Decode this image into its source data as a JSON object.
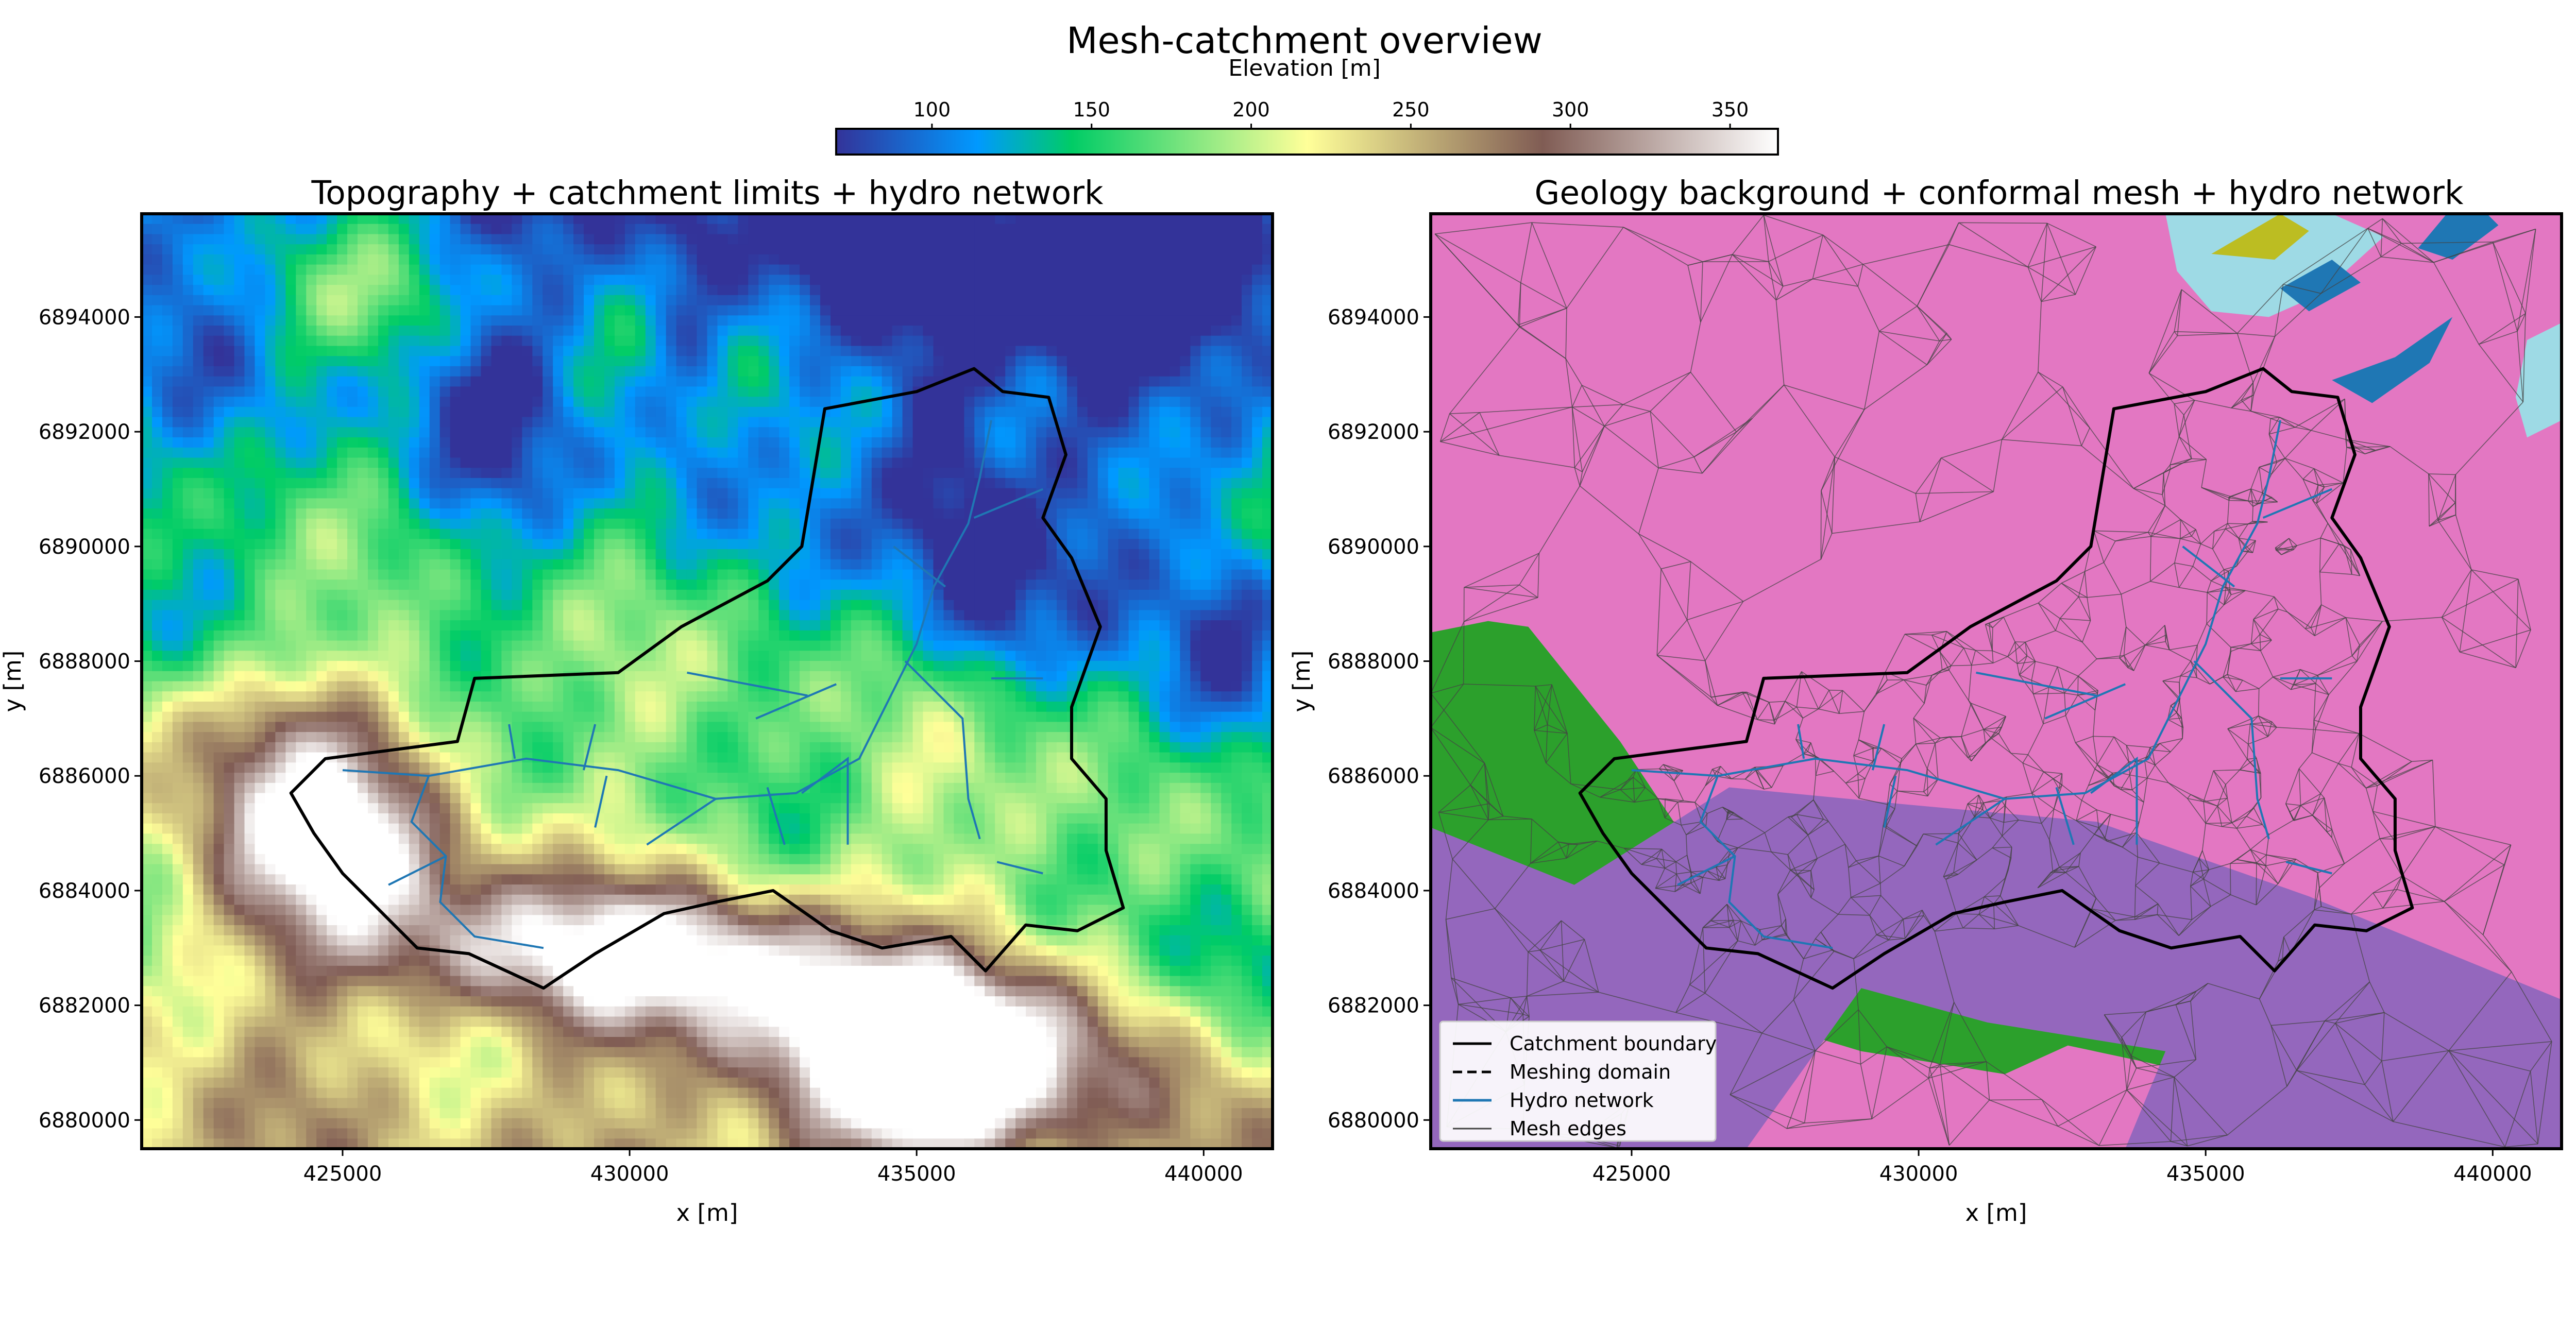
{
  "figure_title": "Mesh-catchment overview",
  "colorbar": {
    "label": "Elevation [m]",
    "ticks": [
      100,
      150,
      200,
      250,
      300,
      350
    ],
    "vmin": 70,
    "vmax": 365,
    "colormap": "terrain"
  },
  "chart_data": [
    {
      "type": "heatmap",
      "title": "Topography + catchment limits + hydro network",
      "xlabel": "x [m]",
      "ylabel": "y [m]",
      "xlim": [
        421500,
        441200
      ],
      "ylim": [
        6879500,
        6895800
      ],
      "xticks": [
        425000,
        430000,
        435000,
        440000
      ],
      "yticks": [
        6880000,
        6882000,
        6884000,
        6886000,
        6888000,
        6890000,
        6892000,
        6894000
      ],
      "layers": [
        "elevation raster",
        "catchment boundary",
        "hydro network"
      ],
      "series": [
        {
          "name": "Catchment boundary",
          "color": "#000000",
          "points": [
            [
              424100,
              6885700
            ],
            [
              424700,
              6886300
            ],
            [
              427000,
              6886600
            ],
            [
              427300,
              6887700
            ],
            [
              429800,
              6887800
            ],
            [
              430900,
              6888600
            ],
            [
              432400,
              6889400
            ],
            [
              433000,
              6890000
            ],
            [
              433400,
              6892400
            ],
            [
              435000,
              6892700
            ],
            [
              436000,
              6893100
            ],
            [
              436500,
              6892700
            ],
            [
              437300,
              6892600
            ],
            [
              437600,
              6891600
            ],
            [
              437200,
              6890500
            ],
            [
              437700,
              6889800
            ],
            [
              438200,
              6888600
            ],
            [
              437700,
              6887200
            ],
            [
              437700,
              6886300
            ],
            [
              438300,
              6885600
            ],
            [
              438300,
              6884700
            ],
            [
              438600,
              6883700
            ],
            [
              437800,
              6883300
            ],
            [
              436900,
              6883400
            ],
            [
              436200,
              6882600
            ],
            [
              435600,
              6883200
            ],
            [
              434400,
              6883000
            ],
            [
              433500,
              6883300
            ],
            [
              432500,
              6884000
            ],
            [
              431500,
              6883800
            ],
            [
              430600,
              6883600
            ],
            [
              429400,
              6882900
            ],
            [
              428500,
              6882300
            ],
            [
              427200,
              6882900
            ],
            [
              426300,
              6883000
            ],
            [
              425600,
              6883700
            ],
            [
              425000,
              6884300
            ],
            [
              424500,
              6885000
            ],
            [
              424100,
              6885700
            ]
          ]
        },
        {
          "name": "Hydro network",
          "color": "#1f77b4",
          "lines": [
            [
              [
                425000,
                6886100
              ],
              [
                426500,
                6886000
              ],
              [
                428200,
                6886300
              ],
              [
                429800,
                6886100
              ],
              [
                431500,
                6885600
              ],
              [
                432900,
                6885700
              ],
              [
                434000,
                6886300
              ],
              [
                434500,
                6887300
              ],
              [
                435000,
                6888300
              ],
              [
                435300,
                6889300
              ],
              [
                435900,
                6890400
              ],
              [
                436100,
                6891200
              ],
              [
                436300,
                6892200
              ]
            ],
            [
              [
                426500,
                6886000
              ],
              [
                426200,
                6885200
              ],
              [
                426800,
                6884600
              ],
              [
                426700,
                6883800
              ],
              [
                427300,
                6883200
              ],
              [
                428500,
                6883000
              ]
            ],
            [
              [
                426800,
                6884600
              ],
              [
                425800,
                6884100
              ]
            ],
            [
              [
                428000,
                6886300
              ],
              [
                427900,
                6886900
              ]
            ],
            [
              [
                429600,
                6886000
              ],
              [
                429400,
                6885100
              ]
            ],
            [
              [
                429200,
                6886100
              ],
              [
                429400,
                6886900
              ]
            ],
            [
              [
                431500,
                6885600
              ],
              [
                430300,
                6884800
              ]
            ],
            [
              [
                432400,
                6885800
              ],
              [
                432700,
                6884800
              ]
            ],
            [
              [
                433000,
                6885700
              ],
              [
                433800,
                6886300
              ],
              [
                433800,
                6884800
              ]
            ],
            [
              [
                432200,
                6887000
              ],
              [
                433600,
                6887600
              ]
            ],
            [
              [
                433100,
                6887400
              ],
              [
                431000,
                6887800
              ]
            ],
            [
              [
                434800,
                6888000
              ],
              [
                435800,
                6887000
              ],
              [
                435900,
                6885600
              ],
              [
                436100,
                6884900
              ]
            ],
            [
              [
                436300,
                6887700
              ],
              [
                437200,
                6887700
              ]
            ],
            [
              [
                435500,
                6889300
              ],
              [
                434600,
                6890000
              ]
            ],
            [
              [
                436000,
                6890500
              ],
              [
                437200,
                6891000
              ]
            ],
            [
              [
                436400,
                6884500
              ],
              [
                437200,
                6884300
              ]
            ]
          ]
        }
      ]
    },
    {
      "type": "scatter",
      "title": "Geology background + conformal mesh + hydro network",
      "xlabel": "x [m]",
      "ylabel": "y [m]",
      "xlim": [
        421500,
        441200
      ],
      "ylim": [
        6879500,
        6895800
      ],
      "xticks": [
        425000,
        430000,
        435000,
        440000
      ],
      "yticks": [
        6880000,
        6882000,
        6884000,
        6886000,
        6888000,
        6890000,
        6892000,
        6894000
      ],
      "geology_units": [
        {
          "color": "#e377c2",
          "points": [
            [
              421500,
              6879500
            ],
            [
              441200,
              6879500
            ],
            [
              441200,
              6895800
            ],
            [
              421500,
              6895800
            ]
          ]
        },
        {
          "color": "#2ca02c",
          "points": [
            [
              421500,
              6888500
            ],
            [
              422500,
              6888700
            ],
            [
              423200,
              6888600
            ],
            [
              424800,
              6886600
            ],
            [
              426200,
              6884500
            ],
            [
              428500,
              6883000
            ],
            [
              430200,
              6882600
            ],
            [
              432000,
              6882300
            ],
            [
              433500,
              6882200
            ],
            [
              436000,
              6881400
            ],
            [
              438500,
              6880600
            ],
            [
              437000,
              6880300
            ],
            [
              434000,
              6881000
            ],
            [
              432600,
              6881300
            ],
            [
              431500,
              6880800
            ],
            [
              429000,
              6881200
            ],
            [
              427000,
              6881800
            ],
            [
              425500,
              6882000
            ],
            [
              423000,
              6882800
            ],
            [
              421500,
              6883000
            ]
          ]
        },
        {
          "color": "#9467bd",
          "points": [
            [
              421500,
              6885100
            ],
            [
              424000,
              6884100
            ],
            [
              426700,
              6885800
            ],
            [
              429800,
              6885500
            ],
            [
              433100,
              6885200
            ],
            [
              436800,
              6883900
            ],
            [
              441200,
              6882100
            ],
            [
              441200,
              6879500
            ],
            [
              433600,
              6879500
            ],
            [
              434300,
              6881200
            ],
            [
              431200,
              6881700
            ],
            [
              429000,
              6882300
            ],
            [
              427000,
              6879500
            ],
            [
              421500,
              6879500
            ]
          ]
        },
        {
          "color": "#9edae5",
          "points": [
            [
              434300,
              6895800
            ],
            [
              437200,
              6895800
            ],
            [
              438100,
              6895400
            ],
            [
              437000,
              6894400
            ],
            [
              436100,
              6894000
            ],
            [
              435100,
              6894100
            ],
            [
              434500,
              6894800
            ]
          ]
        },
        {
          "color": "#bcbd22",
          "points": [
            [
              435100,
              6895100
            ],
            [
              436300,
              6895800
            ],
            [
              436800,
              6895500
            ],
            [
              436200,
              6895000
            ]
          ]
        },
        {
          "color": "#1f77b4",
          "points": [
            [
              438700,
              6895200
            ],
            [
              439200,
              6895800
            ],
            [
              439900,
              6895800
            ],
            [
              440100,
              6895600
            ],
            [
              439300,
              6895000
            ]
          ]
        },
        {
          "color": "#1f77b4",
          "points": [
            [
              436300,
              6894500
            ],
            [
              437200,
              6895000
            ],
            [
              437700,
              6894600
            ],
            [
              436800,
              6894100
            ]
          ]
        },
        {
          "color": "#1f77b4",
          "points": [
            [
              437200,
              6892900
            ],
            [
              438300,
              6893300
            ],
            [
              439300,
              6894000
            ],
            [
              438900,
              6893200
            ],
            [
              437900,
              6892500
            ]
          ]
        },
        {
          "color": "#9edae5",
          "points": [
            [
              441200,
              6892200
            ],
            [
              440600,
              6891900
            ],
            [
              440400,
              6892600
            ],
            [
              440600,
              6893600
            ],
            [
              441200,
              6893900
            ]
          ]
        }
      ],
      "legend": {
        "placement": "lower-left",
        "entries": [
          {
            "label": "Catchment boundary",
            "style": "solid",
            "color": "#000000"
          },
          {
            "label": "Meshing domain",
            "style": "dashed",
            "color": "#000000"
          },
          {
            "label": "Hydro network",
            "style": "solid",
            "color": "#1f77b4"
          },
          {
            "label": "Mesh edges",
            "style": "solid",
            "color": "#444444"
          }
        ]
      }
    }
  ]
}
